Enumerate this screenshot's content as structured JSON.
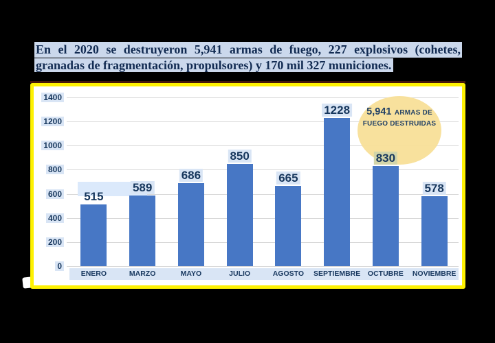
{
  "title": {
    "line1": "En el 2020 se destruyeron 5,941 armas de fuego, 227 explosivos (cohetes,",
    "line2": "granadas de fragmentación, propulsores) y 170 mil 327 municiones.",
    "text_color": "#122B52",
    "highlight_color": "#CBD8EC"
  },
  "chart_data": {
    "type": "bar",
    "title": "",
    "xlabel": "",
    "ylabel": "",
    "categories": [
      "ENERO",
      "MARZO",
      "MAYO",
      "JULIO",
      "AGOSTO",
      "SEPTIEMBRE",
      "OCTUBRE",
      "NOVIEMBRE"
    ],
    "values": [
      515,
      589,
      686,
      850,
      665,
      1228,
      830,
      578
    ],
    "ylim": [
      0,
      1400
    ],
    "yticks": [
      0,
      200,
      400,
      600,
      800,
      1000,
      1200,
      1400
    ],
    "grid": true,
    "legend": "none",
    "bar_color": "#4777C5",
    "gridline_color": "#D9D9D9",
    "label_color": "#16365C",
    "label_highlight_color": "#D9E5F5",
    "frame_color": "#FEF102",
    "annotation": {
      "big": "5,941",
      "small_line1": "ARMAS DE",
      "small_line2": "FUEGO DESTRUIDAS",
      "fill": "#F8E098"
    }
  }
}
